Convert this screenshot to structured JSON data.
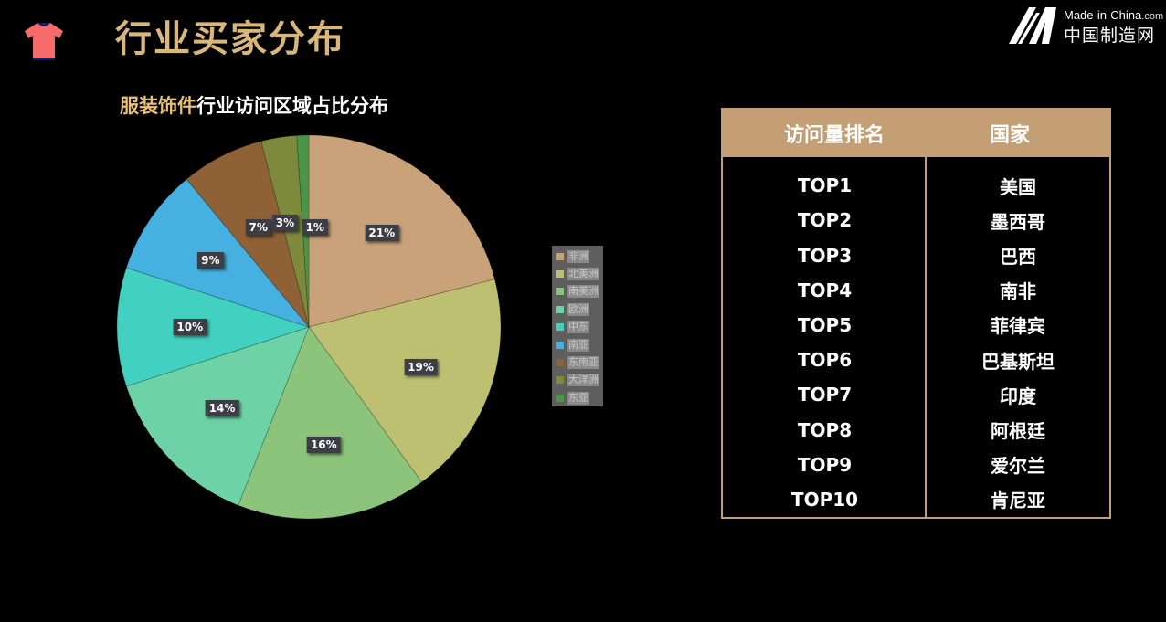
{
  "header": {
    "title": "行业买家分布",
    "icon": "tshirt-icon",
    "icon_color": "#f76b6b",
    "title_color": "#d9b77a"
  },
  "logo": {
    "en": "Made-in-China",
    "en_suffix": ".com",
    "cn": "中国制造网"
  },
  "chart": {
    "title_highlight": "服装饰件",
    "title_rest": "行业访问区域占比分布"
  },
  "chart_data": {
    "type": "pie",
    "title": "服装饰件行业访问区域占比分布",
    "categories": [
      "非洲",
      "北美洲",
      "南美洲",
      "欧洲",
      "中东",
      "南亚",
      "东南亚",
      "大洋洲",
      "东亚"
    ],
    "values": [
      21,
      19,
      16,
      14,
      10,
      9,
      7,
      3,
      1
    ],
    "labels": [
      "21%",
      "19%",
      "16%",
      "14%",
      "10%",
      "9%",
      "7%",
      "3%",
      "1%"
    ],
    "colors": [
      "#c9a27a",
      "#bdc070",
      "#8cc47c",
      "#6dd3a6",
      "#42d0c0",
      "#46b0e0",
      "#8e6137",
      "#7d8a3c",
      "#4a9648"
    ],
    "start_angle": "12 o'clock, clockwise",
    "legend_position": "right"
  },
  "table": {
    "headers": [
      "访问量排名",
      "国家"
    ],
    "rows": [
      {
        "rank": "TOP1",
        "country": "美国"
      },
      {
        "rank": "TOP2",
        "country": "墨西哥"
      },
      {
        "rank": "TOP3",
        "country": "巴西"
      },
      {
        "rank": "TOP4",
        "country": "南非"
      },
      {
        "rank": "TOP5",
        "country": "菲律宾"
      },
      {
        "rank": "TOP6",
        "country": "巴基斯坦"
      },
      {
        "rank": "TOP7",
        "country": "印度"
      },
      {
        "rank": "TOP8",
        "country": "阿根廷"
      },
      {
        "rank": "TOP9",
        "country": "爱尔兰"
      },
      {
        "rank": "TOP10",
        "country": "肯尼亚"
      }
    ],
    "border_color": "#c59f74"
  }
}
